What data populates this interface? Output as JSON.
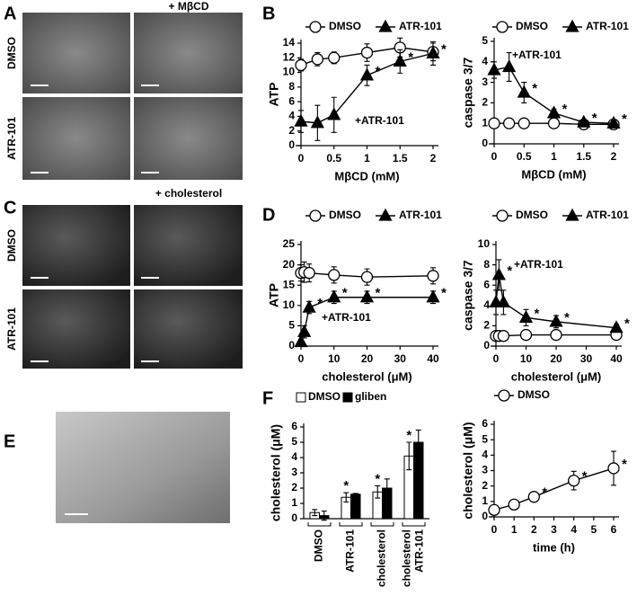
{
  "panels": {
    "A": {
      "letter": "A",
      "column_header": "+ MβCD",
      "row_labels": [
        "DMSO",
        "ATR-101"
      ]
    },
    "B": {
      "letter": "B"
    },
    "C": {
      "letter": "C",
      "column_header": "+ cholesterol",
      "row_labels": [
        "DMSO",
        "ATR-101"
      ]
    },
    "D": {
      "letter": "D"
    },
    "E": {
      "letter": "E"
    },
    "F": {
      "letter": "F"
    }
  },
  "chart_data": [
    {
      "type": "line",
      "ylabel": "ATP",
      "xlabel": "MβCD (mM)",
      "annotation": "+ATR-101",
      "xlim": [
        0,
        2
      ],
      "xticks": [
        0,
        0.5,
        1,
        1.5,
        2
      ],
      "ylim": [
        0,
        14
      ],
      "yticks": [
        0,
        2,
        4,
        6,
        8,
        10,
        12,
        14
      ],
      "x": [
        0,
        0.25,
        0.5,
        1,
        1.5,
        2
      ],
      "series": [
        {
          "name": "DMSO",
          "marker": "circle",
          "color": "#000000",
          "values": [
            11,
            11.8,
            12,
            12.7,
            13.4,
            12.8
          ],
          "errors": [
            0.8,
            0.9,
            0.8,
            1.2,
            1.3,
            1.2
          ]
        },
        {
          "name": "ATR-101",
          "marker": "triangle",
          "color": "#000000",
          "values": [
            3.3,
            3.1,
            4.2,
            9.6,
            11.5,
            12.6
          ],
          "errors": [
            1.5,
            2.4,
            2.4,
            1.4,
            1.6,
            1.6
          ],
          "annotations": [
            null,
            null,
            null,
            "*",
            "*",
            "*"
          ]
        }
      ]
    },
    {
      "type": "line",
      "ylabel": "caspase 3/7",
      "xlabel": "MβCD (mM)",
      "annotation": "+ATR-101",
      "xlim": [
        0,
        2
      ],
      "xticks": [
        0,
        0.5,
        1,
        1.5,
        2
      ],
      "ylim": [
        0,
        5
      ],
      "yticks": [
        0,
        1,
        2,
        3,
        4,
        5
      ],
      "x": [
        0,
        0.25,
        0.5,
        1,
        1.5,
        2
      ],
      "series": [
        {
          "name": "DMSO",
          "marker": "circle",
          "color": "#000000",
          "values": [
            1,
            1,
            1,
            1,
            0.95,
            0.95
          ],
          "errors": [
            0.15,
            0.15,
            0.15,
            0.15,
            0.15,
            0.15
          ]
        },
        {
          "name": "ATR-101",
          "marker": "triangle",
          "color": "#000000",
          "values": [
            3.6,
            3.75,
            2.5,
            1.5,
            1.05,
            1.0
          ],
          "errors": [
            0.4,
            0.7,
            0.5,
            0.2,
            0.1,
            0.1
          ],
          "annotations": [
            null,
            null,
            "*",
            "*",
            "*",
            "*"
          ]
        }
      ]
    },
    {
      "type": "line",
      "ylabel": "ATP",
      "xlabel": "cholesterol (μM)",
      "annotation": "+ATR-101",
      "xlim": [
        0,
        40
      ],
      "xticks": [
        0,
        10,
        20,
        30,
        40
      ],
      "ylim": [
        0,
        25
      ],
      "yticks": [
        0,
        5,
        10,
        15,
        20,
        25
      ],
      "x": [
        0,
        1,
        2.5,
        10,
        20,
        40
      ],
      "series": [
        {
          "name": "DMSO",
          "marker": "circle",
          "color": "#000000",
          "values": [
            18,
            18.2,
            18,
            17.5,
            17,
            17.3
          ],
          "errors": [
            2,
            2.5,
            2.2,
            2,
            2,
            2
          ]
        },
        {
          "name": "ATR-101",
          "marker": "triangle",
          "color": "#000000",
          "values": [
            1,
            3.5,
            9.5,
            12,
            12,
            12
          ],
          "errors": [
            0.5,
            1.5,
            1.5,
            1.5,
            1.5,
            1.5
          ],
          "annotations": [
            null,
            null,
            "*",
            "*",
            "*",
            "*"
          ]
        }
      ]
    },
    {
      "type": "line",
      "ylabel": "caspase 3/7",
      "xlabel": "cholesterol (μM)",
      "annotation": "+ATR-101",
      "xlim": [
        0,
        40
      ],
      "xticks": [
        0,
        10,
        20,
        30,
        40
      ],
      "ylim": [
        0,
        10
      ],
      "yticks": [
        0,
        2,
        4,
        6,
        8,
        10
      ],
      "x": [
        0,
        1,
        2.5,
        10,
        20,
        40
      ],
      "series": [
        {
          "name": "DMSO",
          "marker": "circle",
          "color": "#000000",
          "values": [
            1,
            1,
            1,
            1.1,
            1.1,
            1.1
          ],
          "errors": [
            0.3,
            0.3,
            0.3,
            0.4,
            0.4,
            0.4
          ]
        },
        {
          "name": "ATR-101",
          "marker": "triangle",
          "color": "#000000",
          "values": [
            4.3,
            7,
            4.3,
            2.8,
            2.4,
            1.8
          ],
          "errors": [
            1.2,
            1.5,
            1.2,
            0.8,
            0.6,
            0.3
          ],
          "annotations": [
            null,
            "*",
            null,
            "*",
            "*",
            "*"
          ]
        }
      ]
    },
    {
      "type": "bar",
      "ylabel": "cholesterol (μM)",
      "categories": [
        "DMSO",
        "ATR-101",
        "cholesterol",
        [
          "cholesterol",
          "ATR-101"
        ]
      ],
      "ylim": [
        0,
        6
      ],
      "yticks": [
        0,
        1,
        2,
        3,
        4,
        5,
        6
      ],
      "series": [
        {
          "name": "DMSO",
          "color": "#ffffff",
          "values": [
            0.4,
            1.4,
            1.75,
            4.1
          ],
          "errors": [
            0.2,
            0.3,
            0.4,
            0.9
          ],
          "annotations": [
            null,
            "*",
            "*",
            "*"
          ]
        },
        {
          "name": "gliben",
          "color": "#000000",
          "values": [
            0.2,
            1.6,
            2.0,
            5.0
          ],
          "errors": [
            0.3,
            0.05,
            0.6,
            0.8
          ]
        }
      ]
    },
    {
      "type": "line",
      "ylabel": "cholesterol (μM)",
      "xlabel": "time (h)",
      "xlim": [
        0,
        6
      ],
      "xticks": [
        0,
        1,
        2,
        3,
        4,
        5,
        6
      ],
      "ylim": [
        0,
        6
      ],
      "yticks": [
        0,
        1,
        2,
        3,
        4,
        5,
        6
      ],
      "x": [
        0,
        1,
        2,
        4,
        6
      ],
      "series": [
        {
          "name": "DMSO",
          "marker": "circle",
          "color": "#000000",
          "values": [
            0.45,
            0.8,
            1.3,
            2.35,
            3.15
          ],
          "errors": [
            0.2,
            0.2,
            0.3,
            0.6,
            1.1
          ],
          "annotations": [
            null,
            null,
            "*",
            "*",
            "*"
          ]
        }
      ]
    }
  ]
}
